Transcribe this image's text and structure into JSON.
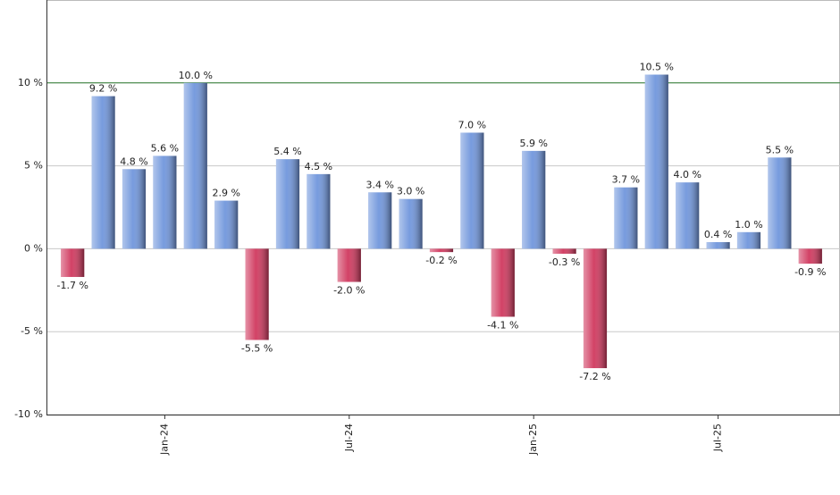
{
  "chart_data": {
    "type": "bar",
    "categories": [
      null,
      null,
      null,
      "Jan-24",
      null,
      null,
      null,
      null,
      null,
      "Jul-24",
      null,
      null,
      null,
      null,
      null,
      "Jan-25",
      null,
      null,
      null,
      null,
      null,
      "Jul-25",
      null,
      null,
      null
    ],
    "values": [
      -1.7,
      9.2,
      4.8,
      5.6,
      10.0,
      2.9,
      -5.5,
      5.4,
      4.5,
      -2.0,
      3.4,
      3.0,
      -0.2,
      7.0,
      -4.1,
      5.9,
      -0.3,
      -7.2,
      3.7,
      10.5,
      4.0,
      0.4,
      1.0,
      5.5,
      -0.9
    ],
    "value_labels": [
      "-1.7 %",
      "9.2 %",
      "4.8 %",
      "5.6 %",
      "10.0 %",
      "2.9 %",
      "-5.5 %",
      "5.4 %",
      "4.5 %",
      "-2.0 %",
      "3.4 %",
      "3.0 %",
      "-0.2 %",
      "7.0 %",
      "-4.1 %",
      "5.9 %",
      "-0.3 %",
      "-7.2 %",
      "3.7 %",
      "10.5 %",
      "4.0 %",
      "0.4 %",
      "1.0 %",
      "5.5 %",
      "-0.9 %"
    ],
    "positive_color": "#7096dc",
    "negative_color": "#d0385e",
    "ylim": [
      -10,
      15
    ],
    "yticks": [
      {
        "value": -10,
        "label": "-10 %"
      },
      {
        "value": -5,
        "label": "-5 %"
      },
      {
        "value": 0,
        "label": "0 %"
      },
      {
        "value": 5,
        "label": "5 %"
      },
      {
        "value": 10,
        "label": "10 %"
      }
    ],
    "grid": true,
    "reference_line": {
      "value": 10,
      "color": "#2e7d32"
    }
  }
}
